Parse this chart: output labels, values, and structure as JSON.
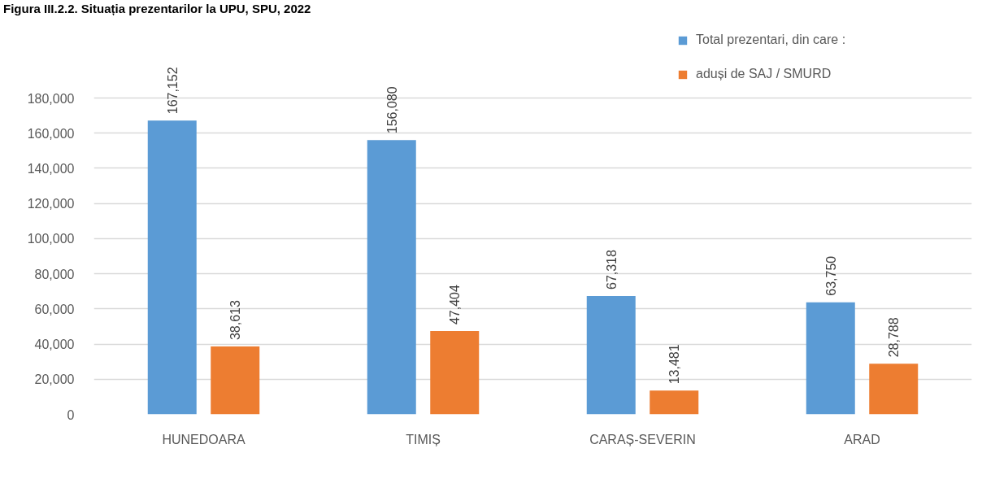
{
  "chart_data": {
    "type": "bar",
    "title": "Figura III.2.2. Situația prezentarilor la UPU, SPU, 2022",
    "categories": [
      "HUNEDOARA",
      "TIMIȘ",
      "CARAȘ-SEVERIN",
      "ARAD"
    ],
    "series": [
      {
        "name": "Total prezentari, din care :",
        "color": "#5b9bd5",
        "values": [
          167152,
          156080,
          67318,
          63750
        ],
        "value_labels": [
          "167,152",
          "156,080",
          "67,318",
          "63,750"
        ]
      },
      {
        "name": "aduși de SAJ / SMURD",
        "color": "#ed7d31",
        "values": [
          38613,
          47404,
          13481,
          28788
        ],
        "value_labels": [
          "38,613",
          "47,404",
          "13,481",
          "28,788"
        ]
      }
    ],
    "ylim": [
      0,
      180000
    ],
    "yticks": [
      0,
      {
        "value": 20000,
        "label": "20,000"
      },
      {
        "value": 40000,
        "label": "40,000"
      },
      {
        "value": 60000,
        "label": "60,000"
      },
      {
        "value": 80000,
        "label": "80,000"
      },
      {
        "value": 100000,
        "label": "100,000"
      },
      {
        "value": 120000,
        "label": "120,000"
      },
      {
        "value": 140000,
        "label": "140,000"
      },
      {
        "value": 160000,
        "label": "160,000"
      },
      {
        "value": 180000,
        "label": "180,000"
      }
    ],
    "grid": "y",
    "legend": "top right"
  }
}
